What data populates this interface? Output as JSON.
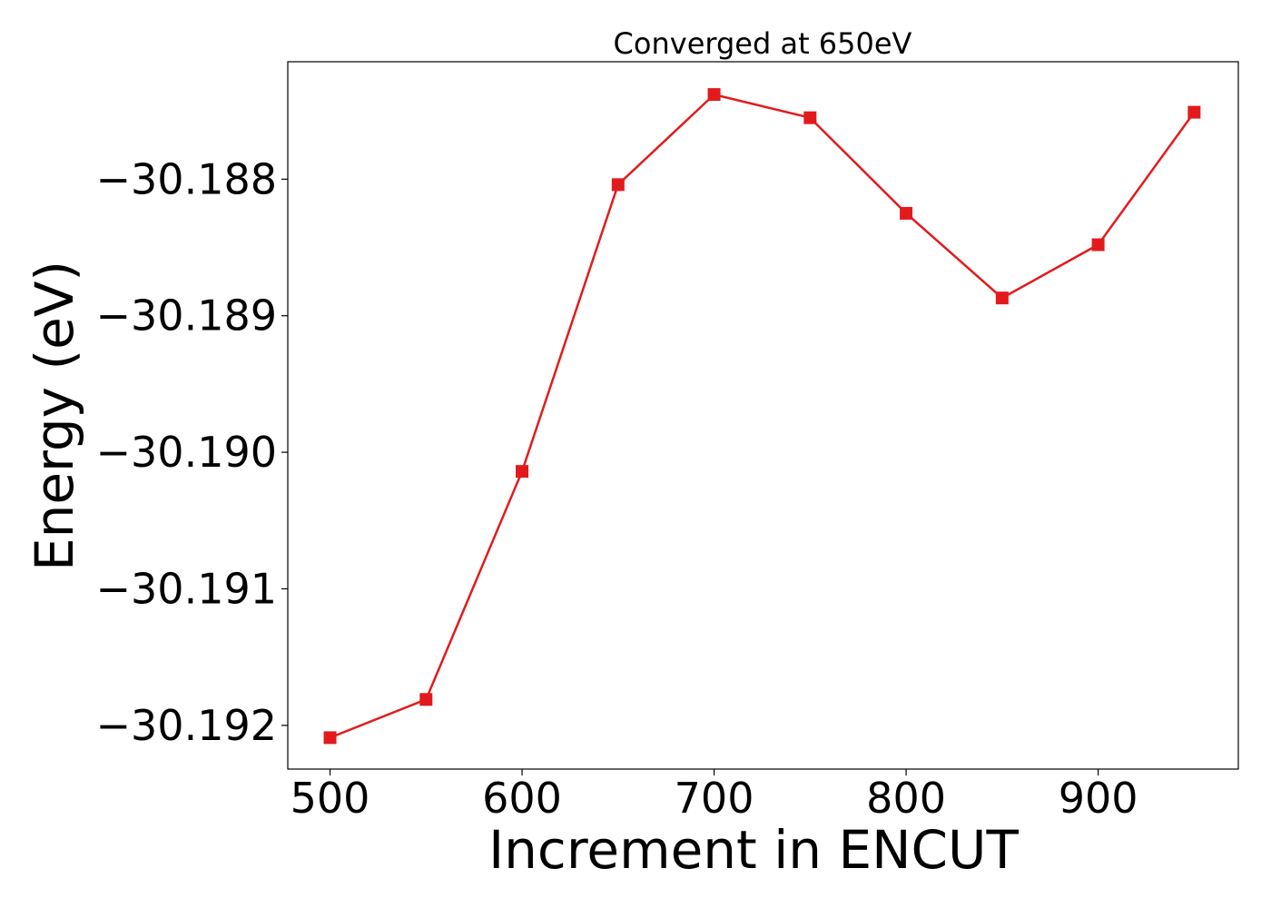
{
  "chart_data": {
    "type": "line",
    "title": "Converged at 650eV",
    "xlabel": "Increment in ENCUT",
    "ylabel": "Energy (eV)",
    "x": [
      500,
      550,
      600,
      650,
      700,
      750,
      800,
      850,
      900,
      950
    ],
    "series": [
      {
        "values": [
          -30.19209,
          -30.19181,
          -30.19014,
          -30.18804,
          -30.18738,
          -30.18755,
          -30.18825,
          -30.18887,
          -30.18848,
          -30.18751
        ],
        "color": "#e31a1c",
        "marker": "square"
      }
    ],
    "xlim": [
      478,
      973
    ],
    "ylim": [
      -30.19232,
      -30.18714
    ],
    "xticks": [
      500,
      600,
      700,
      800,
      900
    ],
    "xtick_labels": [
      "500",
      "600",
      "700",
      "800",
      "900"
    ],
    "yticks": [
      -30.192,
      -30.191,
      -30.19,
      -30.189,
      -30.188
    ],
    "ytick_labels": [
      "−30.192",
      "−30.191",
      "−30.190",
      "−30.189",
      "−30.188"
    ],
    "grid": false,
    "legend": "none"
  }
}
